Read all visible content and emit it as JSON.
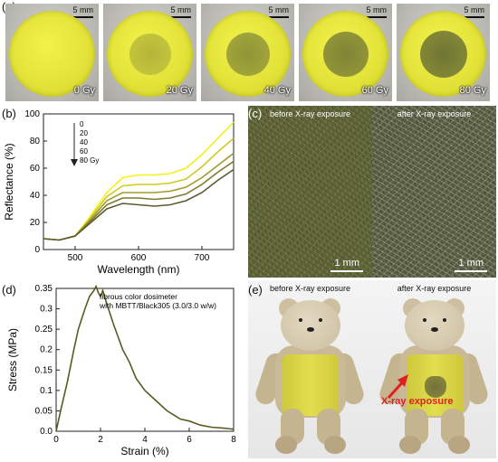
{
  "panel_labels": {
    "a": "(a)",
    "b": "(b)",
    "c": "(c)",
    "d": "(d)",
    "e": "(e)"
  },
  "panel_a": {
    "scale_text": "5 mm",
    "doses": [
      "0 Gy",
      "20 Gy",
      "40 Gy",
      "60 Gy",
      "80 Gy"
    ]
  },
  "panel_c": {
    "before_caption": "before X-ray exposure",
    "after_caption": "after X-ray exposure",
    "scale_text": "1 mm"
  },
  "panel_e": {
    "before_caption": "before X-ray exposure",
    "after_caption": "after X-ray exposure",
    "arrow_label": "X-ray exposure",
    "arrow_color": "#e02020"
  },
  "chart_data": [
    {
      "id": "b",
      "type": "line",
      "xlabel": "Wavelength (nm)",
      "ylabel": "Reflectance (%)",
      "xlim": [
        450,
        750
      ],
      "ylim": [
        0,
        100
      ],
      "xticks": [
        500,
        600,
        700
      ],
      "yticks": [
        0,
        20,
        40,
        60,
        80,
        100
      ],
      "legend": {
        "placement": "top-left",
        "entries": [
          "0",
          "20",
          "40",
          "60",
          "80 Gy"
        ]
      },
      "colors": [
        "#f4f018",
        "#cfc924",
        "#a09b2a",
        "#7d7a30",
        "#5c5a30"
      ],
      "x": [
        450,
        475,
        500,
        520,
        550,
        575,
        600,
        625,
        650,
        675,
        700,
        725,
        750
      ],
      "series": [
        {
          "name": "0",
          "values": [
            8,
            7,
            10,
            22,
            42,
            53,
            55,
            55,
            56,
            60,
            70,
            82,
            94
          ]
        },
        {
          "name": "20",
          "values": [
            8,
            7,
            10,
            21,
            39,
            47,
            48,
            48,
            49,
            52,
            61,
            72,
            82
          ]
        },
        {
          "name": "40",
          "values": [
            8,
            7,
            10,
            20,
            36,
            42,
            42,
            42,
            43,
            46,
            53,
            62,
            71
          ]
        },
        {
          "name": "60",
          "values": [
            8,
            7,
            10,
            19,
            33,
            38,
            38,
            37,
            38,
            41,
            48,
            57,
            65
          ]
        },
        {
          "name": "80 Gy",
          "values": [
            8,
            7,
            10,
            18,
            30,
            34,
            33,
            32,
            33,
            36,
            42,
            51,
            59
          ]
        }
      ]
    },
    {
      "id": "d",
      "type": "line",
      "xlabel": "Strain (%)",
      "ylabel": "Stress (MPa)",
      "xlim": [
        0,
        8
      ],
      "ylim": [
        0,
        0.35
      ],
      "xticks": [
        0,
        2,
        4,
        6,
        8
      ],
      "yticks": [
        0.0,
        0.05,
        0.1,
        0.15,
        0.2,
        0.25,
        0.3,
        0.35
      ],
      "annotation": [
        "fibrous color dosimeter",
        "with MBTT/Black305 (3.0/3.0 w/w)"
      ],
      "colors": [
        "#5a5a22"
      ],
      "series": [
        {
          "x": [
            0,
            0.2,
            0.5,
            0.8,
            1.0,
            1.3,
            1.5,
            1.7,
            1.8,
            1.9,
            2.0,
            2.1,
            2.3,
            2.6,
            3.0,
            3.3,
            3.6,
            4.0,
            4.3,
            4.6,
            5.0,
            5.3,
            5.6,
            6.0,
            6.5,
            7.0,
            7.5,
            8.0
          ],
          "values": [
            0.0,
            0.05,
            0.12,
            0.2,
            0.25,
            0.3,
            0.33,
            0.345,
            0.355,
            0.34,
            0.33,
            0.345,
            0.31,
            0.26,
            0.2,
            0.17,
            0.13,
            0.1,
            0.085,
            0.07,
            0.05,
            0.04,
            0.03,
            0.025,
            0.015,
            0.01,
            0.008,
            0.005
          ]
        }
      ]
    }
  ]
}
